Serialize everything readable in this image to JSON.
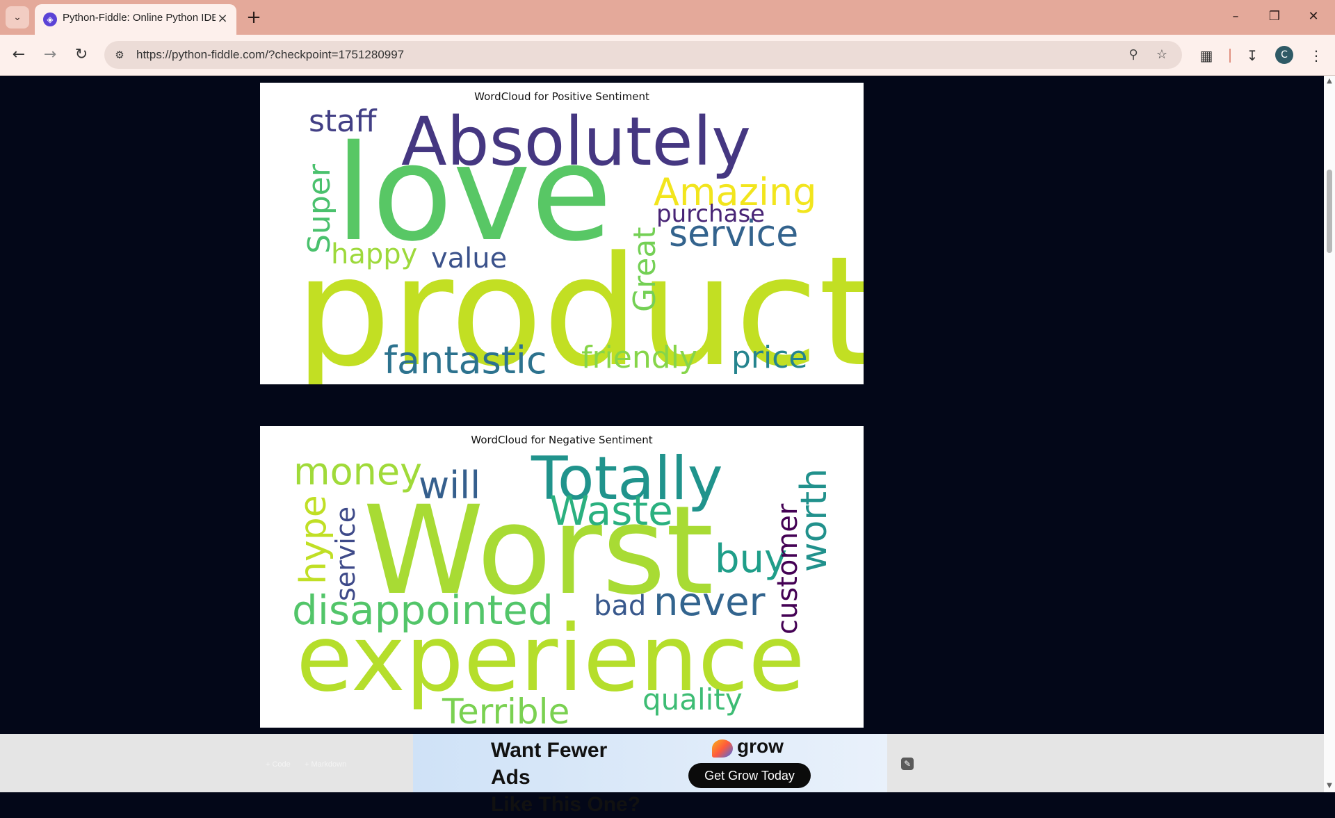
{
  "browser": {
    "tab_title": "Python-Fiddle: Online Python IDE",
    "tab_favicon": "python-fiddle-icon",
    "url": "https://python-fiddle.com/?checkpoint=1751280997",
    "window_controls": [
      "minimize-icon",
      "restore-icon",
      "close-icon"
    ],
    "profile_initial": "C"
  },
  "positive_cloud": {
    "title": "WordCloud for Positive Sentiment",
    "words": [
      "product",
      "love",
      "Absolutely",
      "fantastic",
      "Amazing",
      "service",
      "friendly",
      "staff",
      "price",
      "Super",
      "Great",
      "happy",
      "value",
      "purchase"
    ],
    "colors": {
      "product": "#c2df23",
      "love": "#58c765",
      "Absolutely": "#453781",
      "fantastic": "#2c728e",
      "Amazing": "#f2e51d",
      "service": "#33638d",
      "friendly": "#86d549",
      "staff": "#423f85",
      "price": "#25848e",
      "Super": "#4ac16d",
      "Great": "#74d055",
      "happy": "#9dd93b",
      "value": "#3b528b",
      "purchase": "#482475"
    }
  },
  "negative_cloud": {
    "title": "WordCloud for Negative Sentiment",
    "words": [
      "Worst",
      "experience",
      "Totally",
      "disappointed",
      "Waste",
      "never",
      "money",
      "will",
      "worth",
      "buy",
      "customer",
      "quality",
      "Terrible",
      "hype",
      "service",
      "bad"
    ],
    "colors": {
      "Worst": "#a8db34",
      "experience": "#b5de2b",
      "Totally": "#20938c",
      "disappointed": "#52c569",
      "Waste": "#2ab07f",
      "never": "#32648e",
      "money": "#a0da39",
      "will": "#355f8d",
      "worth": "#21918c",
      "buy": "#1f9e89",
      "customer": "#440154",
      "quality": "#3dbc74",
      "Terrible": "#7ad151",
      "hype": "#c0df25",
      "service": "#3e4a89",
      "bad": "#38588c"
    }
  },
  "footer": {
    "add_code": "+ Code",
    "add_markdown": "+ Markdown",
    "ad_headline_1": "Want Fewer Ads",
    "ad_headline_2": "Like This One?",
    "ad_brand": "grow",
    "ad_cta": "Get Grow Today"
  }
}
